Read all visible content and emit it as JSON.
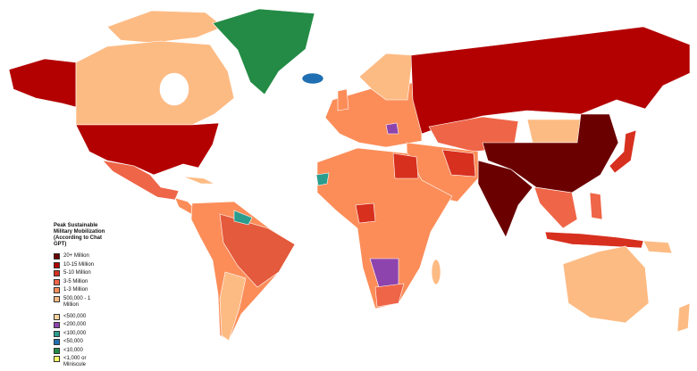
{
  "legend": {
    "title": "Peak Sustainable Military Mobilization (According to Chat GPT)",
    "items": [
      {
        "label": "20+ Million",
        "color": "#6b0000"
      },
      {
        "label": "10-15 Million",
        "color": "#b30000"
      },
      {
        "label": "5-10 Million",
        "color": "#d7301f"
      },
      {
        "label": "3-5 Million",
        "color": "#ef6548"
      },
      {
        "label": "1-3 Million",
        "color": "#fc8d59"
      },
      {
        "label": "500,000 - 1 Million",
        "color": "#fdbb84"
      },
      {
        "label": "<500,000",
        "color": "#fdd49e"
      },
      {
        "label": "<200,000",
        "color": "#8e44ad"
      },
      {
        "label": "<100,000",
        "color": "#2a9d8f"
      },
      {
        "label": "<50,000",
        "color": "#1f6fb2"
      },
      {
        "label": "<10,000",
        "color": "#238b45"
      },
      {
        "label": "<1,000 or Miniscule",
        "color": "#ffff66"
      }
    ]
  }
}
